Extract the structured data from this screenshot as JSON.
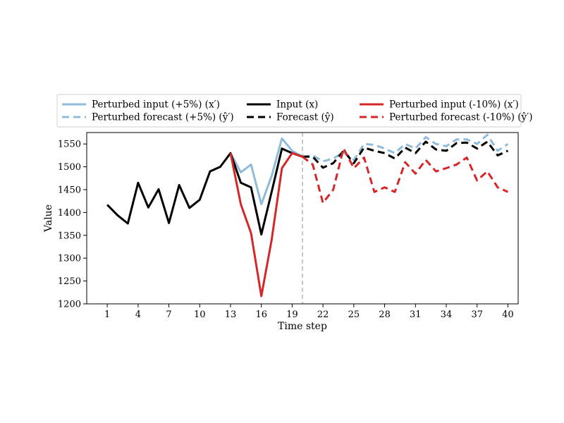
{
  "chart_data": {
    "type": "line",
    "xlabel": "Time step",
    "ylabel": "Value",
    "xlim": [
      -1,
      41
    ],
    "ylim": [
      1200,
      1575
    ],
    "x_ticks": [
      1,
      4,
      7,
      10,
      13,
      16,
      19,
      22,
      25,
      28,
      31,
      34,
      37,
      40
    ],
    "y_ticks": [
      1200,
      1250,
      1300,
      1350,
      1400,
      1450,
      1500,
      1550
    ],
    "grid": false,
    "legend_position": "top",
    "forecast_start_marker": 20,
    "series": [
      {
        "name": "Perturbed input (+5%) (x′)",
        "color": "#8fbcdb",
        "dashed": false,
        "x": [
          13,
          14,
          15,
          16,
          17,
          18,
          19,
          20
        ],
        "y": [
          1530,
          1488,
          1505,
          1418,
          1480,
          1562,
          1535,
          1522
        ]
      },
      {
        "name": "Perturbed forecast (+5%) (ŷ′)",
        "color": "#8fbcdb",
        "dashed": true,
        "x": [
          20,
          21,
          22,
          23,
          24,
          25,
          26,
          27,
          28,
          29,
          30,
          31,
          32,
          33,
          34,
          35,
          36,
          37,
          38,
          39,
          40
        ],
        "y": [
          1522,
          1525,
          1512,
          1518,
          1532,
          1515,
          1550,
          1548,
          1540,
          1530,
          1550,
          1540,
          1565,
          1550,
          1545,
          1560,
          1560,
          1550,
          1570,
          1535,
          1550
        ]
      },
      {
        "name": "Input (x)",
        "color": "#000000",
        "dashed": false,
        "x": [
          1,
          2,
          3,
          4,
          5,
          6,
          7,
          8,
          9,
          10,
          11,
          12,
          13,
          14,
          15,
          16,
          17,
          18,
          19,
          20
        ],
        "y": [
          1417,
          1394,
          1376,
          1465,
          1411,
          1451,
          1377,
          1460,
          1410,
          1428,
          1490,
          1500,
          1530,
          1465,
          1455,
          1352,
          1445,
          1540,
          1530,
          1522
        ]
      },
      {
        "name": "Forecast (ŷ)",
        "color": "#000000",
        "dashed": true,
        "x": [
          20,
          21,
          22,
          23,
          24,
          25,
          26,
          27,
          28,
          29,
          30,
          31,
          32,
          33,
          34,
          35,
          36,
          37,
          38,
          39,
          40
        ],
        "y": [
          1522,
          1522,
          1498,
          1508,
          1535,
          1508,
          1542,
          1535,
          1530,
          1518,
          1542,
          1530,
          1555,
          1538,
          1535,
          1552,
          1553,
          1540,
          1555,
          1525,
          1535
        ]
      },
      {
        "name": "Perturbed input (-10%) (x′)",
        "color": "#d62728",
        "dashed": false,
        "x": [
          13,
          14,
          15,
          16,
          17,
          18,
          19,
          20
        ],
        "y": [
          1530,
          1418,
          1355,
          1217,
          1340,
          1497,
          1530,
          1522
        ]
      },
      {
        "name": "Perturbed forecast (-10%) (ŷ′)",
        "color": "#d62728",
        "dashed": true,
        "x": [
          20,
          21,
          22,
          23,
          24,
          25,
          26,
          27,
          28,
          29,
          30,
          31,
          32,
          33,
          34,
          35,
          36,
          37,
          38,
          39,
          40
        ],
        "y": [
          1522,
          1505,
          1421,
          1450,
          1540,
          1497,
          1520,
          1445,
          1455,
          1445,
          1510,
          1485,
          1515,
          1490,
          1497,
          1505,
          1520,
          1470,
          1490,
          1455,
          1445
        ]
      }
    ]
  }
}
